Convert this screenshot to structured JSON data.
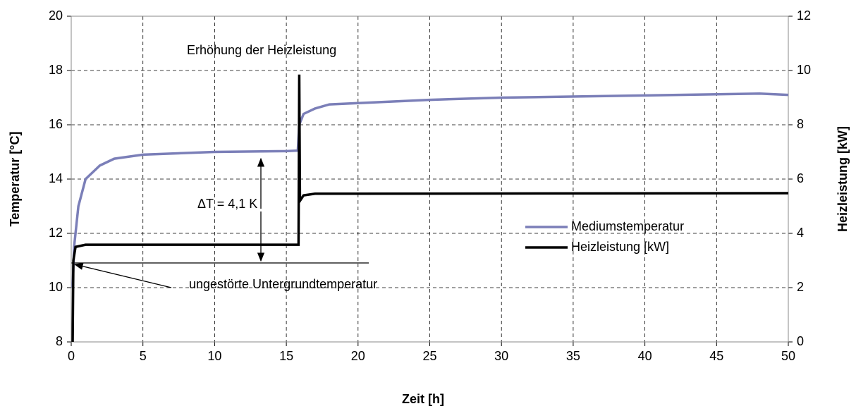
{
  "chart_data": {
    "type": "line",
    "xlabel": "Zeit [h]",
    "ylabel": "Temperatur [°C]",
    "y2label": "Heizleistung [kW]",
    "annotations": [
      "Erhöhung der Heizleistung",
      "ΔT = 4,1 K",
      "ungestörte Untergrundtemperatur"
    ],
    "xlim": [
      0,
      50
    ],
    "xticks": [
      0,
      5,
      10,
      15,
      20,
      25,
      30,
      35,
      40,
      45,
      50
    ],
    "ylim": [
      8,
      20
    ],
    "yticks": [
      8,
      10,
      12,
      14,
      16,
      18,
      20
    ],
    "y2lim": [
      0,
      12
    ],
    "y2ticks": [
      0,
      2,
      4,
      6,
      8,
      10,
      12
    ],
    "grid": true,
    "legend": "right",
    "series": [
      {
        "name": "Mediumstemperatur",
        "color": "#7b7fb8",
        "axis": "y",
        "x": [
          0.1,
          0.2,
          0.5,
          1,
          2,
          3,
          5,
          10,
          15,
          15.8,
          15.9,
          16.2,
          17,
          18,
          20,
          25,
          30,
          40,
          48,
          50
        ],
        "values": [
          10,
          11.5,
          13,
          14,
          14.5,
          14.75,
          14.9,
          15.0,
          15.03,
          15.05,
          16.0,
          16.4,
          16.6,
          16.75,
          16.8,
          16.92,
          17.0,
          17.08,
          17.15,
          17.1
        ]
      },
      {
        "name": "Heizleistung [kW]",
        "color": "#000000",
        "axis": "y2",
        "x": [
          0.1,
          0.15,
          0.3,
          1,
          15.8,
          15.85,
          15.9,
          15.95,
          16.2,
          17,
          50
        ],
        "values": [
          0,
          3.0,
          3.5,
          3.58,
          3.58,
          3.58,
          9.85,
          5.2,
          5.4,
          5.46,
          5.48
        ]
      }
    ]
  }
}
